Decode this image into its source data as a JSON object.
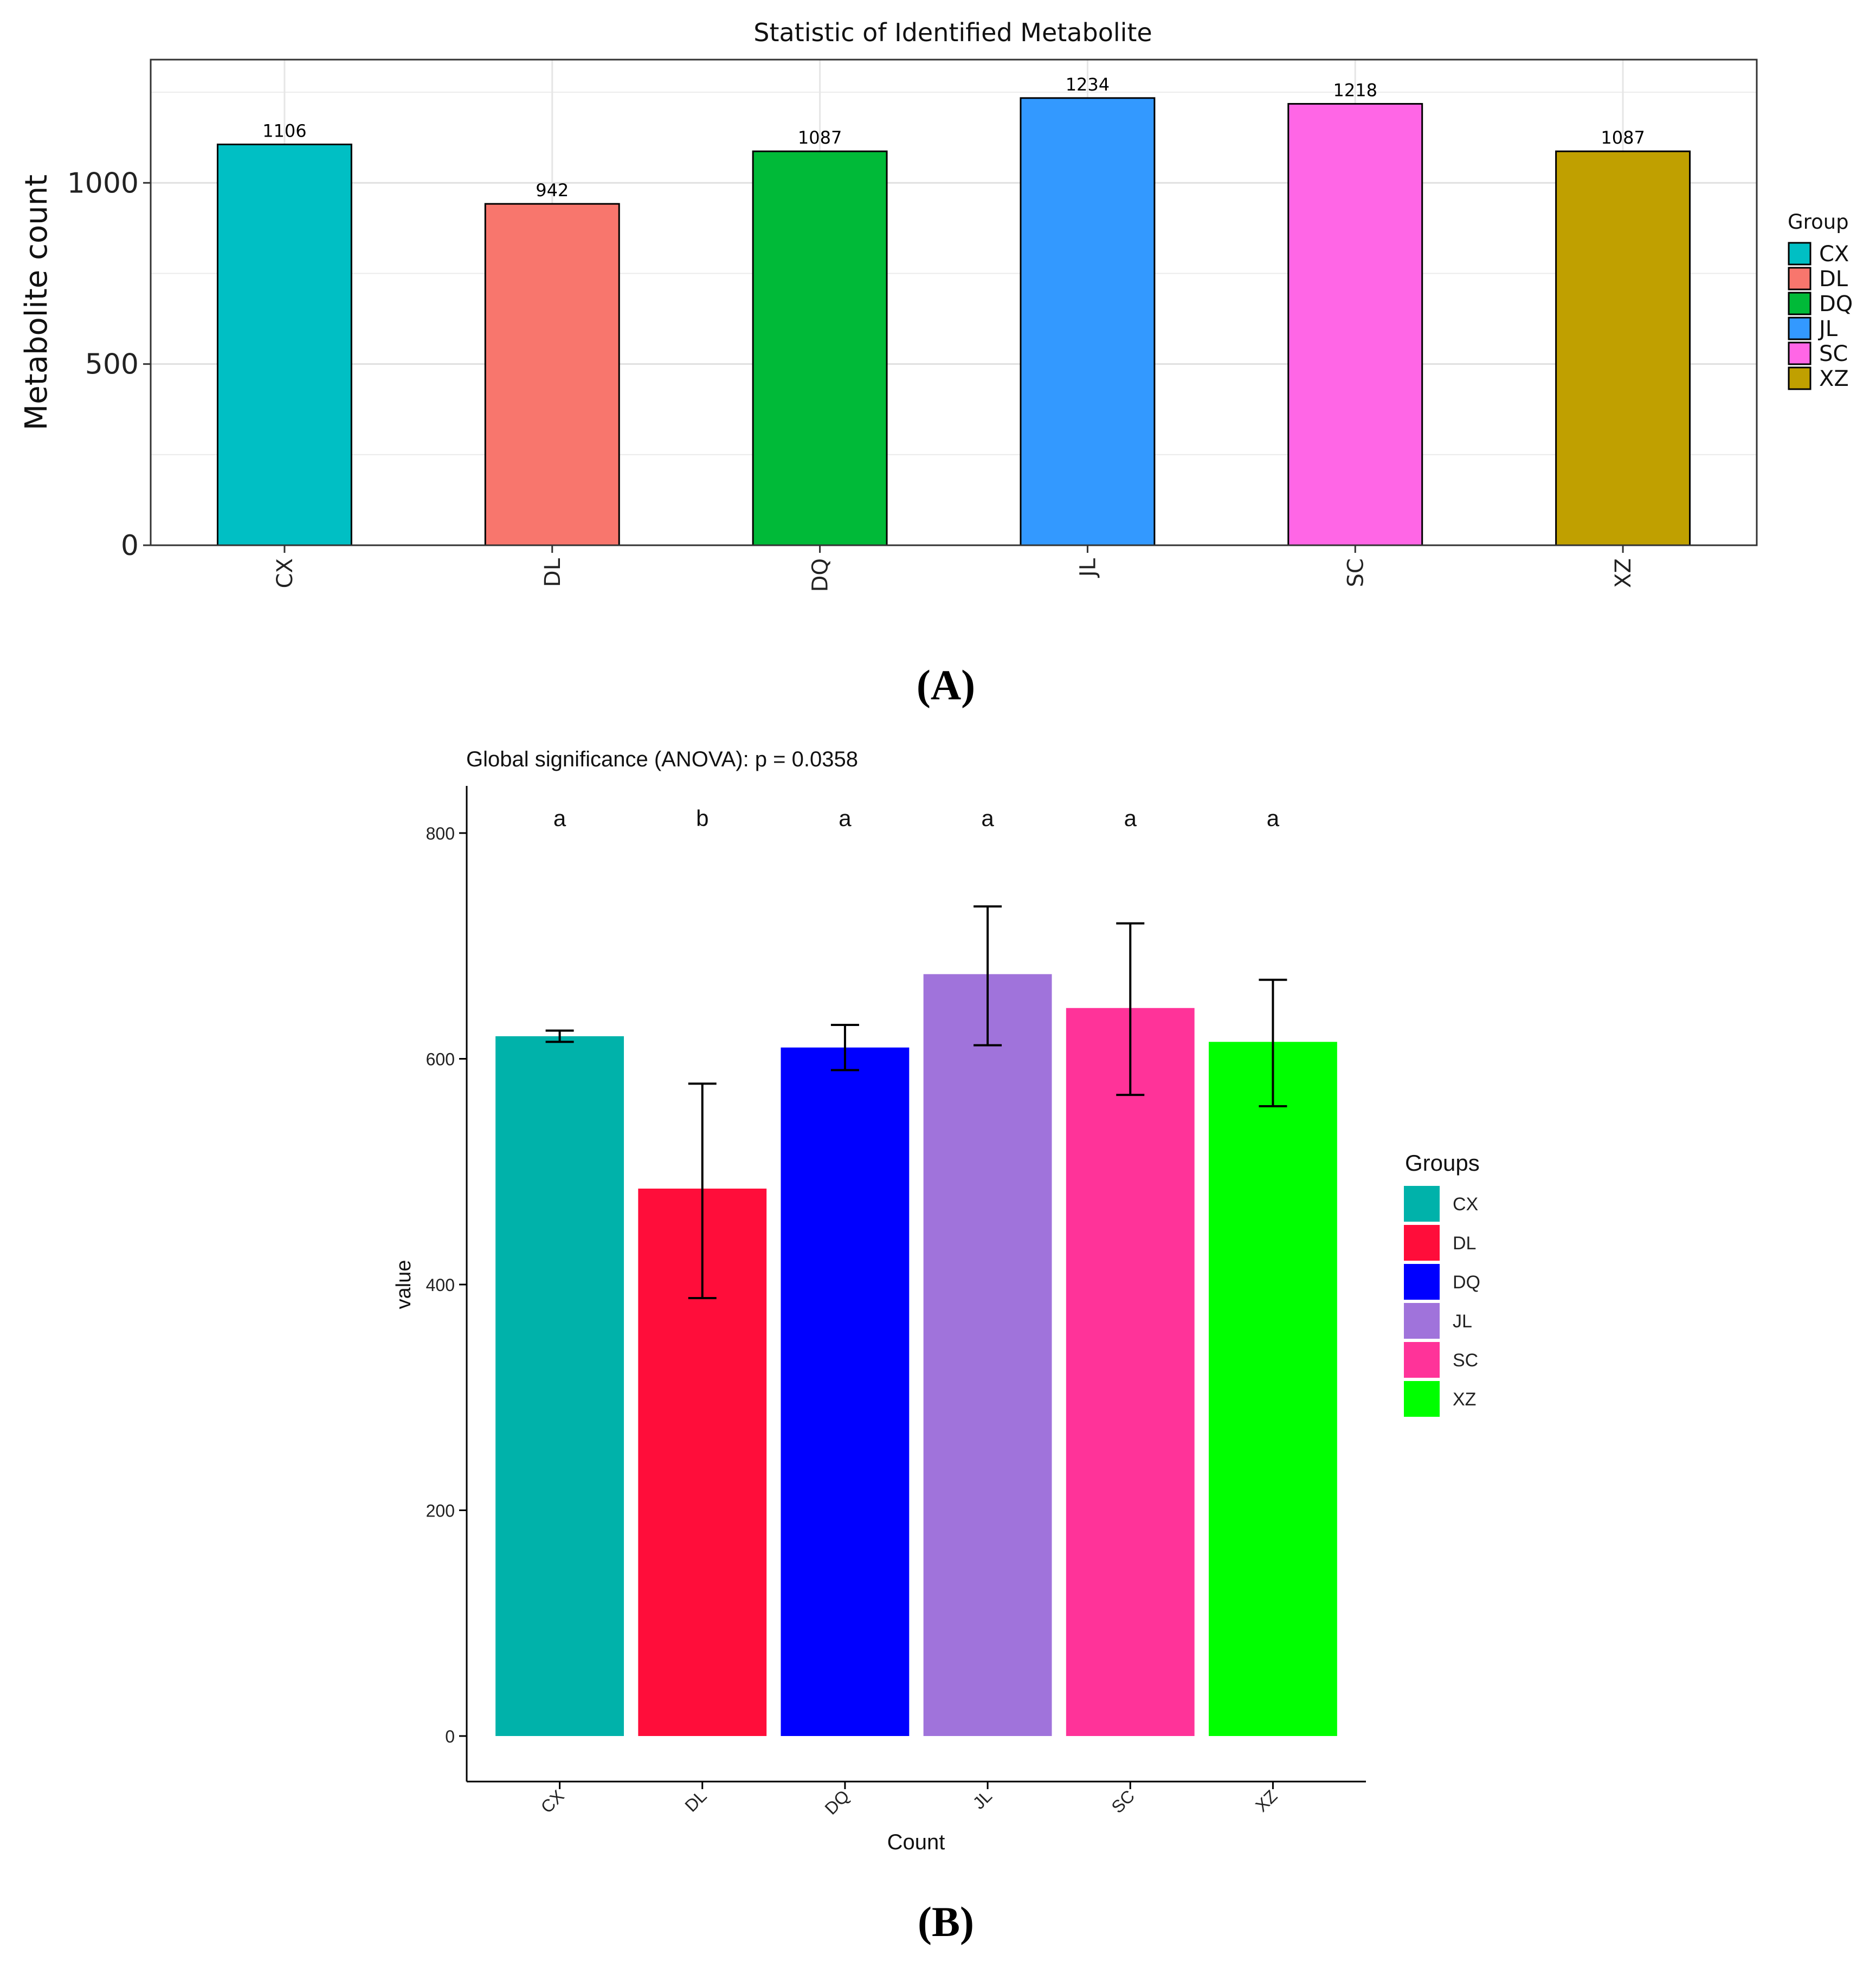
{
  "panel_labels": {
    "a": "(A)",
    "b": "(B)"
  },
  "chart_data": [
    {
      "type": "bar",
      "title": "Statistic of Identified Metabolite",
      "xlabel": "",
      "ylabel": "Metabolite count",
      "categories": [
        "CX",
        "DL",
        "DQ",
        "JL",
        "SC",
        "XZ"
      ],
      "values": [
        1106,
        942,
        1087,
        1234,
        1218,
        1087
      ],
      "data_labels": [
        "1106",
        "942",
        "1087",
        "1234",
        "1218",
        "1087"
      ],
      "ylim": [
        0,
        1340
      ],
      "yticks": [
        0,
        500,
        1000
      ],
      "ytick_labels": [
        "0",
        "500",
        "1000"
      ],
      "grid": true,
      "legend": {
        "title": "Group",
        "position": "right",
        "entries": [
          "CX",
          "DL",
          "DQ",
          "JL",
          "SC",
          "XZ"
        ]
      },
      "colors": [
        "#00BFC4",
        "#F8766D",
        "#00BA38",
        "#3399FF",
        "#FF66E6",
        "#C0A000"
      ]
    },
    {
      "type": "bar",
      "title": "Global significance (ANOVA): p = 0.0358",
      "xlabel": "Count",
      "ylabel": "value",
      "categories": [
        "CX",
        "DL",
        "DQ",
        "JL",
        "SC",
        "XZ"
      ],
      "values": [
        620,
        485,
        610,
        675,
        645,
        615
      ],
      "error_low": [
        615,
        388,
        590,
        612,
        568,
        558
      ],
      "error_high": [
        625,
        578,
        630,
        735,
        720,
        670
      ],
      "significance_letters": [
        "a",
        "b",
        "a",
        "a",
        "a",
        "a"
      ],
      "ylim": [
        -40,
        840
      ],
      "yticks": [
        0,
        200,
        400,
        600,
        800
      ],
      "ytick_labels": [
        "0",
        "200",
        "400",
        "600",
        "800"
      ],
      "grid": false,
      "legend": {
        "title": "Groups",
        "position": "right",
        "entries": [
          "CX",
          "DL",
          "DQ",
          "JL",
          "SC",
          "XZ"
        ]
      },
      "colors": [
        "#00B2AA",
        "#FF0D3A",
        "#0000FF",
        "#A073DB",
        "#FF3399",
        "#00FF00"
      ]
    }
  ]
}
